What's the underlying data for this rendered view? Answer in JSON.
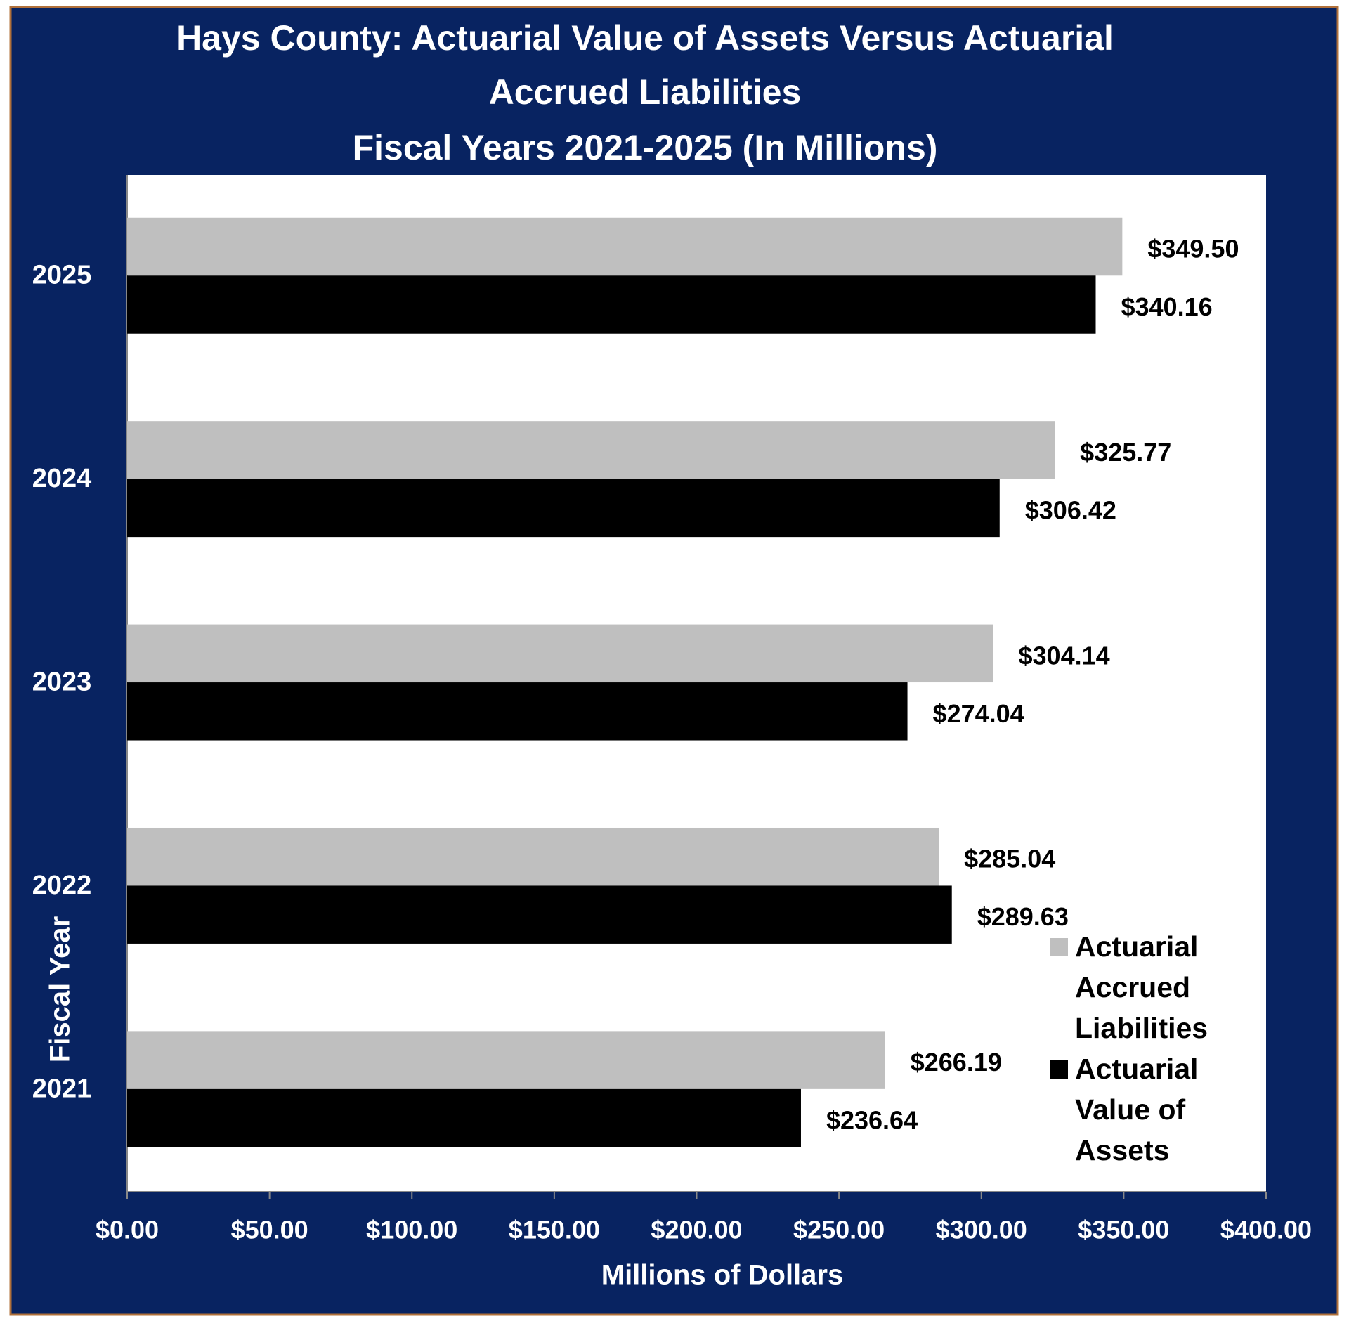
{
  "chart_data": {
    "type": "hbar",
    "title": [
      "Hays County: Actuarial Value of Assets Versus Actuarial",
      "Accrued Liabilities",
      "Fiscal Years 2021-2025 (In Millions)"
    ],
    "x_label": "Millions of Dollars",
    "y_label": "Fiscal Year",
    "categories": [
      "2021",
      "2022",
      "2023",
      "2024",
      "2025"
    ],
    "series": [
      {
        "name": "Actuarial Accrued Liabilities",
        "color": "#bfbfbf",
        "values": [
          266.19,
          285.04,
          304.14,
          325.77,
          349.5
        ],
        "value_labels": [
          "$266.19",
          "$285.04",
          "$304.14",
          "$325.77",
          "$349.50"
        ]
      },
      {
        "name": "Actuarial Value of Assets",
        "color": "#000000",
        "values": [
          236.64,
          289.63,
          274.04,
          306.42,
          340.16
        ],
        "value_labels": [
          "$236.64",
          "$289.63",
          "$274.04",
          "$306.42",
          "$340.16"
        ]
      }
    ],
    "xlim": [
      0,
      400
    ],
    "xticks": [
      {
        "value": 0,
        "label": "$0.00"
      },
      {
        "value": 50,
        "label": "$50.00"
      },
      {
        "value": 100,
        "label": "$100.00"
      },
      {
        "value": 150,
        "label": "$150.00"
      },
      {
        "value": 200,
        "label": "$200.00"
      },
      {
        "value": 250,
        "label": "$250.00"
      },
      {
        "value": 300,
        "label": "$300.00"
      },
      {
        "value": 350,
        "label": "$350.00"
      },
      {
        "value": 400,
        "label": "$400.00"
      }
    ],
    "legend": "right"
  }
}
